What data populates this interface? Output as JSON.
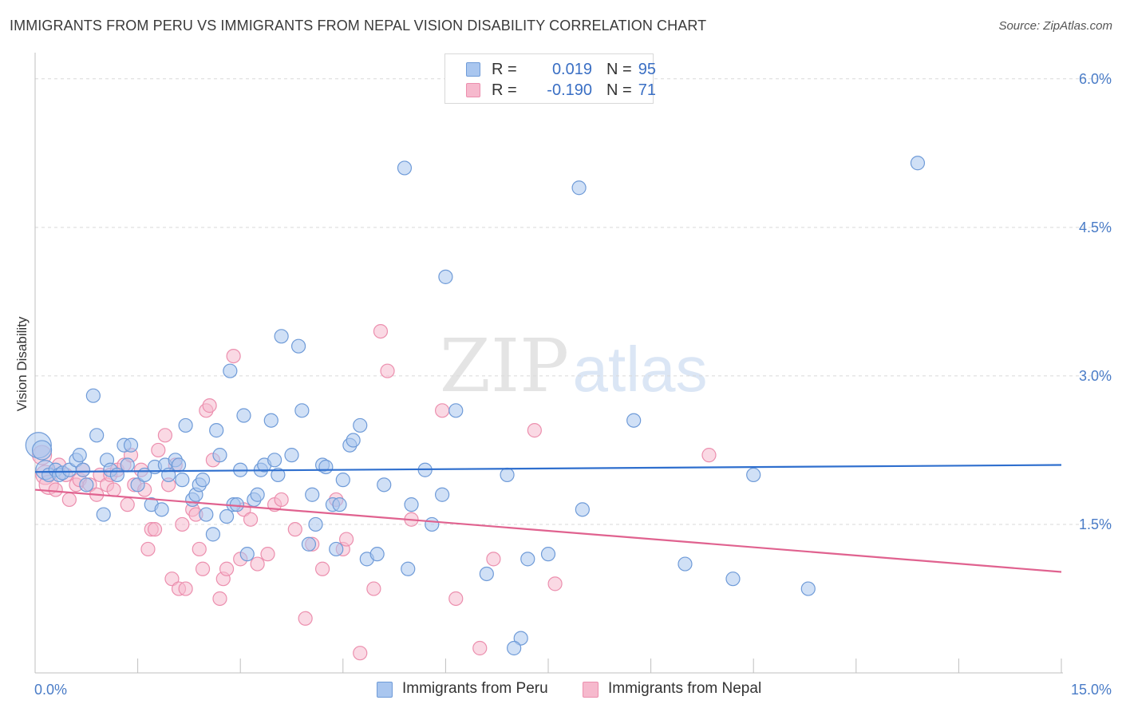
{
  "title": "IMMIGRANTS FROM PERU VS IMMIGRANTS FROM NEPAL VISION DISABILITY CORRELATION CHART",
  "source": "Source: ZipAtlas.com",
  "watermark": {
    "zip": "ZIP",
    "atlas": "atlas"
  },
  "legend_top": [
    {
      "r_label": "R =",
      "r_value": "0.019",
      "n_label": "N =",
      "n_value": "95"
    },
    {
      "r_label": "R =",
      "r_value": "-0.190",
      "n_label": "N =",
      "n_value": "71"
    }
  ],
  "colors": {
    "peru_fill": "#a9c6ef",
    "peru_stroke": "#6f9bd8",
    "peru_line": "#2f6fce",
    "nepal_fill": "#f6b9cd",
    "nepal_stroke": "#ec8fae",
    "nepal_line": "#e0628f",
    "grid": "#d9d9d9",
    "tick_text": "#4a7cc7"
  },
  "chart_data": {
    "type": "scatter",
    "title": "IMMIGRANTS FROM PERU VS IMMIGRANTS FROM NEPAL VISION DISABILITY CORRELATION CHART",
    "xlabel": "",
    "ylabel": "Vision Disability",
    "xlim": [
      0,
      15
    ],
    "ylim": [
      0,
      6.2
    ],
    "x_tick_labels": [
      {
        "value": 0,
        "label": "0.0%"
      },
      {
        "value": 15,
        "label": "15.0%"
      }
    ],
    "x_minor_ticks": [
      0,
      1.5,
      3.0,
      4.5,
      6.0,
      7.5,
      9.0,
      10.5,
      12.0,
      13.5,
      15.0
    ],
    "y_ticks": [
      {
        "value": 1.5,
        "label": "1.5%"
      },
      {
        "value": 3.0,
        "label": "3.0%"
      },
      {
        "value": 4.5,
        "label": "4.5%"
      },
      {
        "value": 6.0,
        "label": "6.0%"
      }
    ],
    "grid": true,
    "legend_placement": "top-center",
    "series": [
      {
        "name": "Immigrants from Peru",
        "trend": {
          "x": [
            0,
            15
          ],
          "y": [
            2.03,
            2.1
          ]
        },
        "points": [
          [
            0.05,
            2.3
          ],
          [
            0.1,
            2.25
          ],
          [
            0.15,
            2.05
          ],
          [
            0.2,
            2.0
          ],
          [
            0.3,
            2.05
          ],
          [
            0.35,
            2.0
          ],
          [
            0.4,
            2.02
          ],
          [
            0.5,
            2.05
          ],
          [
            0.6,
            2.15
          ],
          [
            0.65,
            2.2
          ],
          [
            0.7,
            2.05
          ],
          [
            0.75,
            1.9
          ],
          [
            0.85,
            2.8
          ],
          [
            0.9,
            2.4
          ],
          [
            1.0,
            1.6
          ],
          [
            1.05,
            2.15
          ],
          [
            1.1,
            2.05
          ],
          [
            1.2,
            2.0
          ],
          [
            1.3,
            2.3
          ],
          [
            1.35,
            2.1
          ],
          [
            1.4,
            2.3
          ],
          [
            1.5,
            1.9
          ],
          [
            1.6,
            2.0
          ],
          [
            1.7,
            1.7
          ],
          [
            1.75,
            2.08
          ],
          [
            1.85,
            1.65
          ],
          [
            1.9,
            2.1
          ],
          [
            1.95,
            2.0
          ],
          [
            2.05,
            2.15
          ],
          [
            2.1,
            2.1
          ],
          [
            2.15,
            1.95
          ],
          [
            2.2,
            2.5
          ],
          [
            2.3,
            1.75
          ],
          [
            2.35,
            1.8
          ],
          [
            2.4,
            1.9
          ],
          [
            2.45,
            1.95
          ],
          [
            2.5,
            1.6
          ],
          [
            2.6,
            1.4
          ],
          [
            2.65,
            2.45
          ],
          [
            2.7,
            2.2
          ],
          [
            2.8,
            1.58
          ],
          [
            2.85,
            3.05
          ],
          [
            2.9,
            1.7
          ],
          [
            2.95,
            1.7
          ],
          [
            3.0,
            2.05
          ],
          [
            3.05,
            2.6
          ],
          [
            3.1,
            1.2
          ],
          [
            3.2,
            1.75
          ],
          [
            3.25,
            1.8
          ],
          [
            3.3,
            2.05
          ],
          [
            3.35,
            2.1
          ],
          [
            3.45,
            2.55
          ],
          [
            3.5,
            2.15
          ],
          [
            3.55,
            2.0
          ],
          [
            3.6,
            3.4
          ],
          [
            3.75,
            2.2
          ],
          [
            3.85,
            3.3
          ],
          [
            3.9,
            2.65
          ],
          [
            4.0,
            1.3
          ],
          [
            4.05,
            1.8
          ],
          [
            4.1,
            1.5
          ],
          [
            4.2,
            2.1
          ],
          [
            4.25,
            2.08
          ],
          [
            4.35,
            1.7
          ],
          [
            4.4,
            1.25
          ],
          [
            4.45,
            1.7
          ],
          [
            4.5,
            1.95
          ],
          [
            4.6,
            2.3
          ],
          [
            4.65,
            2.35
          ],
          [
            4.75,
            2.5
          ],
          [
            4.85,
            1.15
          ],
          [
            5.0,
            1.2
          ],
          [
            5.1,
            1.9
          ],
          [
            5.4,
            5.1
          ],
          [
            5.45,
            1.05
          ],
          [
            5.5,
            1.7
          ],
          [
            5.7,
            2.05
          ],
          [
            5.8,
            1.5
          ],
          [
            5.95,
            1.8
          ],
          [
            6.0,
            4.0
          ],
          [
            6.15,
            2.65
          ],
          [
            6.6,
            1.0
          ],
          [
            6.9,
            2.0
          ],
          [
            7.1,
            0.35
          ],
          [
            7.2,
            1.15
          ],
          [
            7.5,
            1.2
          ],
          [
            7.95,
            4.9
          ],
          [
            8.0,
            1.65
          ],
          [
            8.75,
            2.55
          ],
          [
            9.5,
            1.1
          ],
          [
            10.2,
            0.95
          ],
          [
            10.5,
            2.0
          ],
          [
            11.3,
            0.85
          ],
          [
            12.9,
            5.15
          ],
          [
            7.0,
            0.25
          ]
        ]
      },
      {
        "name": "Immigrants from Nepal",
        "trend": {
          "x": [
            0,
            15
          ],
          "y": [
            1.85,
            1.02
          ]
        },
        "points": [
          [
            0.1,
            2.2
          ],
          [
            0.15,
            2.0
          ],
          [
            0.2,
            1.9
          ],
          [
            0.3,
            1.85
          ],
          [
            0.35,
            2.1
          ],
          [
            0.45,
            2.0
          ],
          [
            0.5,
            1.75
          ],
          [
            0.6,
            1.9
          ],
          [
            0.65,
            1.95
          ],
          [
            0.7,
            2.05
          ],
          [
            0.8,
            1.9
          ],
          [
            0.9,
            1.8
          ],
          [
            0.95,
            2.0
          ],
          [
            1.05,
            1.9
          ],
          [
            1.1,
            2.0
          ],
          [
            1.15,
            1.85
          ],
          [
            1.2,
            2.05
          ],
          [
            1.3,
            2.1
          ],
          [
            1.35,
            1.7
          ],
          [
            1.4,
            2.2
          ],
          [
            1.45,
            1.9
          ],
          [
            1.55,
            2.05
          ],
          [
            1.6,
            1.85
          ],
          [
            1.65,
            1.25
          ],
          [
            1.7,
            1.45
          ],
          [
            1.75,
            1.45
          ],
          [
            1.8,
            2.25
          ],
          [
            1.9,
            2.4
          ],
          [
            1.95,
            1.9
          ],
          [
            2.0,
            0.95
          ],
          [
            2.05,
            2.1
          ],
          [
            2.1,
            0.85
          ],
          [
            2.15,
            1.5
          ],
          [
            2.2,
            0.85
          ],
          [
            2.3,
            1.65
          ],
          [
            2.35,
            1.6
          ],
          [
            2.4,
            1.25
          ],
          [
            2.45,
            1.05
          ],
          [
            2.5,
            2.65
          ],
          [
            2.55,
            2.7
          ],
          [
            2.6,
            2.15
          ],
          [
            2.7,
            0.75
          ],
          [
            2.75,
            0.95
          ],
          [
            2.8,
            1.05
          ],
          [
            2.9,
            3.2
          ],
          [
            3.0,
            1.15
          ],
          [
            3.05,
            1.65
          ],
          [
            3.15,
            1.55
          ],
          [
            3.25,
            1.1
          ],
          [
            3.4,
            1.2
          ],
          [
            3.5,
            1.7
          ],
          [
            3.6,
            1.75
          ],
          [
            3.8,
            1.45
          ],
          [
            3.95,
            0.55
          ],
          [
            4.05,
            1.3
          ],
          [
            4.2,
            1.05
          ],
          [
            4.4,
            1.75
          ],
          [
            4.5,
            1.25
          ],
          [
            4.55,
            1.35
          ],
          [
            4.75,
            0.2
          ],
          [
            4.95,
            0.85
          ],
          [
            5.05,
            3.45
          ],
          [
            5.15,
            3.05
          ],
          [
            5.5,
            1.55
          ],
          [
            5.95,
            2.65
          ],
          [
            6.15,
            0.75
          ],
          [
            6.5,
            0.25
          ],
          [
            6.7,
            1.15
          ],
          [
            7.3,
            2.45
          ],
          [
            7.6,
            0.9
          ],
          [
            9.85,
            2.2
          ]
        ]
      }
    ]
  },
  "legend_bottom": [
    {
      "label": "Immigrants from Peru"
    },
    {
      "label": "Immigrants from Nepal"
    }
  ]
}
